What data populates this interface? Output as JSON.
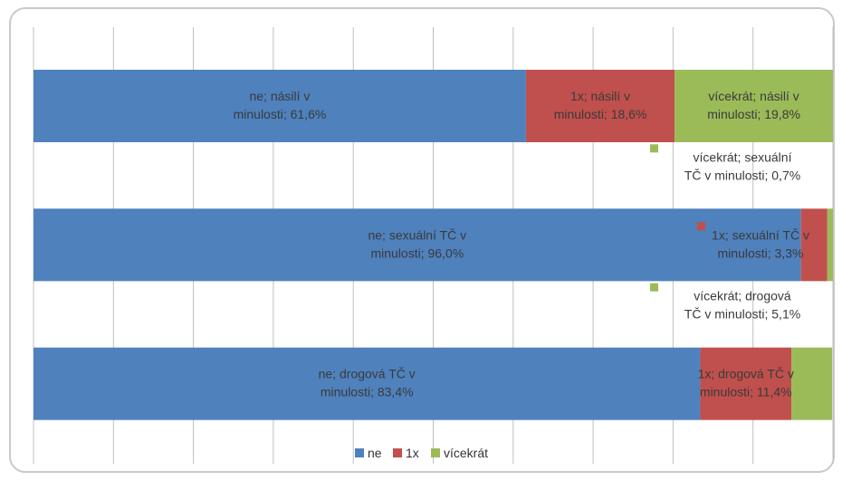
{
  "chart_data": {
    "type": "bar",
    "orientation": "horizontal",
    "stacked": "100%",
    "categories": [
      "násilí v minulosti",
      "sexuální TČ v minulosti",
      "drogová TČ v minulosti"
    ],
    "series": [
      {
        "name": "ne",
        "color": "#4f81bd",
        "values": [
          61.6,
          96.0,
          83.4
        ],
        "labels": [
          [
            "ne; násilí v",
            "minulosti; 61,6%"
          ],
          [
            "ne; sexuální TČ v",
            "minulosti; 96,0%"
          ],
          [
            "ne; drogová TČ v",
            "minulosti; 83,4%"
          ]
        ]
      },
      {
        "name": "1x",
        "color": "#c0504d",
        "values": [
          18.6,
          3.3,
          11.4
        ],
        "labels": [
          [
            "1x; násilí v",
            "minulosti; 18,6%"
          ],
          [
            "1x; sexuální TČ v",
            "minulosti; 3,3%"
          ],
          [
            "1x; drogová TČ v",
            "minulosti; 11,4%"
          ]
        ]
      },
      {
        "name": "vícekrát",
        "color": "#9bbb59",
        "values": [
          19.8,
          0.7,
          5.1
        ],
        "labels": [
          [
            "vícekrát; násilí v",
            "minulosti; 19,8%"
          ],
          [
            "vícekrát; sexuální",
            "TČ v minulosti; 0,7%"
          ],
          [
            "vícekrát; drogová",
            "TČ v minulosti; 5,1%"
          ]
        ]
      }
    ],
    "xlim": [
      0,
      100
    ],
    "grid": true,
    "legend": "bottom"
  }
}
